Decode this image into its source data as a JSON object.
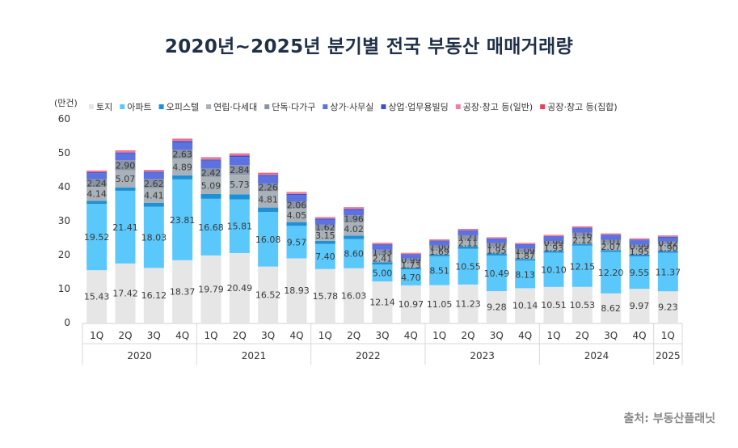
{
  "page_title": "2020년~2025년 분기별 전국 부동산 매매거래량",
  "source": "출처: 부동산플래닛",
  "chart_data": {
    "type": "bar",
    "stacked": true,
    "unit_label": "(만건)",
    "title": "2020년~2025년 분기별 전국 부동산 매매거래량",
    "ylim": [
      0,
      60
    ],
    "yticks": [
      0,
      10,
      20,
      30,
      40,
      50,
      60
    ],
    "categories": [
      "1Q",
      "2Q",
      "3Q",
      "4Q",
      "1Q",
      "2Q",
      "3Q",
      "4Q",
      "1Q",
      "2Q",
      "3Q",
      "4Q",
      "1Q",
      "2Q",
      "3Q",
      "4Q",
      "1Q",
      "2Q",
      "3Q",
      "4Q",
      "1Q"
    ],
    "year_groups": [
      {
        "label": "2020",
        "count": 4
      },
      {
        "label": "2021",
        "count": 4
      },
      {
        "label": "2022",
        "count": 4
      },
      {
        "label": "2023",
        "count": 4
      },
      {
        "label": "2024",
        "count": 4
      },
      {
        "label": "2025",
        "count": 1
      }
    ],
    "legend_position": "top",
    "series": [
      {
        "name": "토지",
        "color": "#e6e6e6",
        "values": [
          15.43,
          17.42,
          16.12,
          18.37,
          19.79,
          20.49,
          16.52,
          18.93,
          15.78,
          16.03,
          12.14,
          10.97,
          11.05,
          11.23,
          9.28,
          10.14,
          10.51,
          10.53,
          8.62,
          9.97,
          9.23
        ]
      },
      {
        "name": "아파트",
        "color": "#5ac8fa",
        "values": [
          19.52,
          21.41,
          18.03,
          23.81,
          16.68,
          15.81,
          16.08,
          9.57,
          7.4,
          8.6,
          5.0,
          4.7,
          8.51,
          10.55,
          10.49,
          8.13,
          10.1,
          12.15,
          12.2,
          9.55,
          11.37
        ]
      },
      {
        "name": "오피스텔",
        "color": "#1e90d6",
        "values": [
          0.9,
          1.0,
          1.1,
          1.2,
          1.4,
          1.5,
          1.3,
          1.1,
          0.9,
          1.0,
          0.6,
          0.5,
          0.5,
          0.6,
          0.6,
          0.5,
          0.5,
          0.5,
          0.5,
          0.5,
          0.5
        ]
      },
      {
        "name": "연립·다세대",
        "color": "#a9b1b9",
        "values": [
          4.14,
          5.07,
          4.41,
          4.89,
          5.09,
          5.73,
          4.81,
          4.05,
          3.15,
          4.02,
          2.41,
          1.73,
          1.69,
          2.11,
          1.95,
          1.87,
          1.93,
          2.12,
          2.07,
          1.95,
          1.9
        ]
      },
      {
        "name": "단독·다가구",
        "color": "#8b94a4",
        "values": [
          2.24,
          2.9,
          2.62,
          2.63,
          2.42,
          2.84,
          2.26,
          2.06,
          1.62,
          1.96,
          1.33,
          0.99,
          1.0,
          1.21,
          1.07,
          1.09,
          0.99,
          1.16,
          1.01,
          0.99,
          0.92
        ]
      },
      {
        "name": "상가·사무실",
        "color": "#5b72e0",
        "values": [
          1.8,
          2.0,
          1.9,
          2.2,
          2.3,
          2.4,
          2.2,
          1.9,
          1.5,
          1.6,
          1.4,
          1.1,
          1.2,
          1.3,
          1.2,
          1.2,
          1.2,
          1.3,
          1.3,
          1.3,
          1.2
        ]
      },
      {
        "name": "상업·업무용빌딩",
        "color": "#3e4fc8",
        "values": [
          0.25,
          0.3,
          0.28,
          0.4,
          0.35,
          0.4,
          0.35,
          0.3,
          0.25,
          0.25,
          0.2,
          0.2,
          0.2,
          0.2,
          0.2,
          0.2,
          0.2,
          0.2,
          0.2,
          0.2,
          0.2
        ]
      },
      {
        "name": "공장·창고 등(일반)",
        "color": "#f27fa0",
        "values": [
          0.35,
          0.4,
          0.35,
          0.45,
          0.45,
          0.45,
          0.4,
          0.4,
          0.3,
          0.35,
          0.3,
          0.25,
          0.25,
          0.3,
          0.25,
          0.25,
          0.3,
          0.3,
          0.25,
          0.25,
          0.25
        ]
      },
      {
        "name": "공장·창고 등(집합)",
        "color": "#e8405a",
        "values": [
          0.15,
          0.2,
          0.15,
          0.2,
          0.2,
          0.2,
          0.2,
          0.15,
          0.15,
          0.15,
          0.12,
          0.1,
          0.1,
          0.1,
          0.1,
          0.1,
          0.1,
          0.1,
          0.1,
          0.1,
          0.1
        ]
      }
    ],
    "labeled_series": [
      "토지",
      "아파트",
      "연립·다세대",
      "단독·다가구"
    ]
  }
}
